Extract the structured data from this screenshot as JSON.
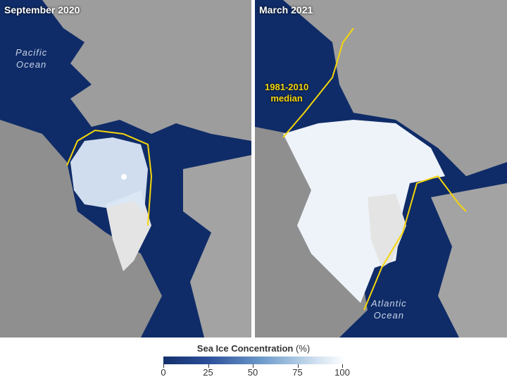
{
  "panels": [
    {
      "title": "September 2020",
      "ocean_label": "Pacific Ocean",
      "ocean_lines": [
        "Pacific",
        "Ocean"
      ]
    },
    {
      "title": "March 2021",
      "ocean_label": "Atlantic Ocean",
      "ocean_lines": [
        "Atlantic",
        "Ocean"
      ],
      "median_label": [
        "1981-2010",
        "median"
      ]
    }
  ],
  "legend": {
    "title": "Sea Ice Concentration",
    "unit": "(%)",
    "ticks": [
      "0",
      "25",
      "50",
      "75",
      "100"
    ],
    "color_low": "#14306b",
    "color_high": "#fbfdff"
  },
  "colors": {
    "ocean": "#0f2c68",
    "land": "#9a9a9a",
    "ice": "#f2f6fb",
    "median_line": "#f5d50a"
  }
}
